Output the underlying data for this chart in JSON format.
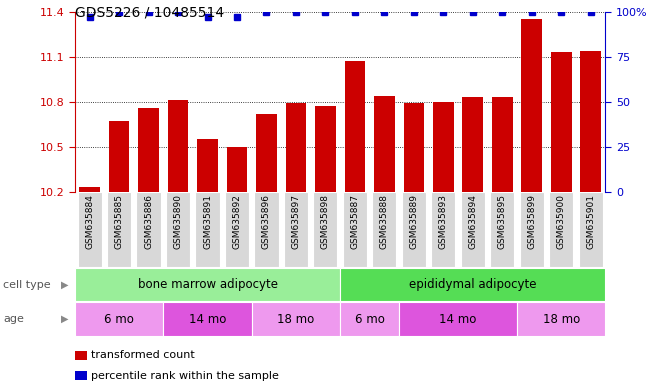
{
  "title": "GDS5226 / 10485514",
  "samples": [
    "GSM635884",
    "GSM635885",
    "GSM635886",
    "GSM635890",
    "GSM635891",
    "GSM635892",
    "GSM635896",
    "GSM635897",
    "GSM635898",
    "GSM635887",
    "GSM635888",
    "GSM635889",
    "GSM635893",
    "GSM635894",
    "GSM635895",
    "GSM635899",
    "GSM635900",
    "GSM635901"
  ],
  "bar_values": [
    10.23,
    10.67,
    10.76,
    10.81,
    10.55,
    10.5,
    10.72,
    10.79,
    10.77,
    11.07,
    10.84,
    10.79,
    10.8,
    10.83,
    10.83,
    11.35,
    11.13,
    11.14
  ],
  "percentile_values": [
    97,
    100,
    100,
    100,
    97,
    97,
    100,
    100,
    100,
    100,
    100,
    100,
    100,
    100,
    100,
    100,
    100,
    100
  ],
  "ymin": 10.2,
  "ymax": 11.4,
  "yticks": [
    10.2,
    10.5,
    10.8,
    11.1,
    11.4
  ],
  "right_yticks": [
    0,
    25,
    50,
    75,
    100
  ],
  "right_yticklabels": [
    "0",
    "25",
    "50",
    "75",
    "100%"
  ],
  "bar_color": "#cc0000",
  "dot_color": "#0000cc",
  "cell_type_groups": [
    {
      "label": "bone marrow adipocyte",
      "start": 0,
      "end": 9,
      "color": "#99ee99"
    },
    {
      "label": "epididymal adipocyte",
      "start": 9,
      "end": 18,
      "color": "#55dd55"
    }
  ],
  "age_groups": [
    {
      "label": "6 mo",
      "start": 0,
      "end": 3,
      "color": "#ee99ee"
    },
    {
      "label": "14 mo",
      "start": 3,
      "end": 6,
      "color": "#dd55dd"
    },
    {
      "label": "18 mo",
      "start": 6,
      "end": 9,
      "color": "#ee99ee"
    },
    {
      "label": "6 mo",
      "start": 9,
      "end": 11,
      "color": "#ee99ee"
    },
    {
      "label": "14 mo",
      "start": 11,
      "end": 15,
      "color": "#dd55dd"
    },
    {
      "label": "18 mo",
      "start": 15,
      "end": 18,
      "color": "#ee99ee"
    }
  ],
  "cell_type_label": "cell type",
  "age_label": "age",
  "legend_bar_label": "transformed count",
  "legend_dot_label": "percentile rank within the sample",
  "title_fontsize": 10,
  "tick_fontsize": 8,
  "label_fontsize": 8.5
}
